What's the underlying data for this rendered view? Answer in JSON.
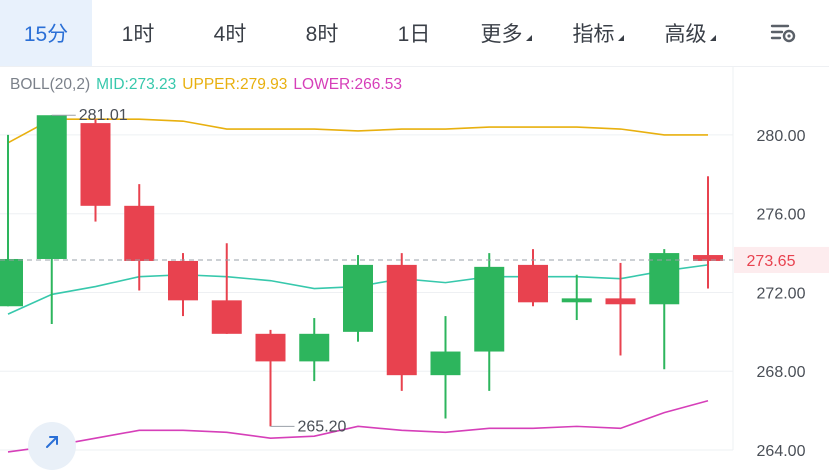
{
  "timeframe_tabs": [
    {
      "label": "15分",
      "active": true
    },
    {
      "label": "1时",
      "active": false
    },
    {
      "label": "4时",
      "active": false
    },
    {
      "label": "8时",
      "active": false
    },
    {
      "label": "1日",
      "active": false
    },
    {
      "label": "更多",
      "active": false,
      "dropdown": true
    },
    {
      "label": "指标",
      "active": false,
      "dropdown": true
    },
    {
      "label": "高级",
      "active": false,
      "dropdown": true
    }
  ],
  "settings_icon": "chart-settings-icon",
  "indicator": {
    "name": "BOLL(20,2)",
    "mid": "MID:273.23",
    "upper": "UPPER:279.93",
    "lower": "LOWER:266.53"
  },
  "colors": {
    "up": "#2db55d",
    "down": "#e8424f",
    "mid": "#37c8ac",
    "upper": "#e8b00f",
    "lower": "#d63fb9",
    "accent": "#2a6fd6",
    "price_tag": "#e8424f"
  },
  "chart_data": {
    "type": "candlestick",
    "ylim": [
      264,
      283.5
    ],
    "y_ticks": [
      "280.00",
      "276.00",
      "272.00",
      "268.00",
      "264.00"
    ],
    "current_price": "273.65",
    "high_label": "281.01",
    "low_label": "265.20",
    "candles": [
      {
        "open": 271.3,
        "close": 273.7,
        "high": 280.0,
        "low": 271.3
      },
      {
        "open": 273.7,
        "close": 281.0,
        "high": 281.0,
        "low": 270.4
      },
      {
        "open": 280.6,
        "close": 276.4,
        "high": 280.8,
        "low": 275.6
      },
      {
        "open": 276.4,
        "close": 273.6,
        "high": 277.5,
        "low": 272.1
      },
      {
        "open": 273.6,
        "close": 271.6,
        "high": 274.0,
        "low": 270.8
      },
      {
        "open": 271.6,
        "close": 269.9,
        "high": 274.5,
        "low": 269.9
      },
      {
        "open": 269.9,
        "close": 268.5,
        "high": 270.1,
        "low": 265.2
      },
      {
        "open": 268.5,
        "close": 269.9,
        "high": 270.7,
        "low": 267.5
      },
      {
        "open": 270.0,
        "close": 273.4,
        "high": 273.9,
        "low": 269.5
      },
      {
        "open": 273.4,
        "close": 267.8,
        "high": 274.0,
        "low": 267.0
      },
      {
        "open": 267.8,
        "close": 269.0,
        "high": 270.8,
        "low": 265.6
      },
      {
        "open": 269.0,
        "close": 273.3,
        "high": 274.0,
        "low": 267.0
      },
      {
        "open": 273.4,
        "close": 271.5,
        "high": 274.2,
        "low": 271.3
      },
      {
        "open": 271.5,
        "close": 271.7,
        "high": 272.9,
        "low": 270.6
      },
      {
        "open": 271.7,
        "close": 271.4,
        "high": 273.5,
        "low": 268.8
      },
      {
        "open": 271.4,
        "close": 274.0,
        "high": 274.2,
        "low": 268.1
      },
      {
        "open": 273.9,
        "close": 273.6,
        "high": 277.9,
        "low": 272.2
      }
    ],
    "mid": [
      270.9,
      271.9,
      272.3,
      272.8,
      272.9,
      272.8,
      272.6,
      272.2,
      272.3,
      272.7,
      272.5,
      272.8,
      272.8,
      272.8,
      272.7,
      273.1,
      273.4
    ],
    "upper": [
      279.6,
      280.8,
      280.8,
      280.8,
      280.7,
      280.3,
      280.3,
      280.3,
      280.2,
      280.3,
      280.3,
      280.4,
      280.4,
      280.4,
      280.3,
      280.0,
      280.0
    ],
    "lower": [
      263.9,
      264.2,
      264.6,
      265.0,
      265.0,
      264.9,
      264.6,
      264.7,
      265.2,
      265.0,
      264.9,
      265.1,
      265.1,
      265.2,
      265.1,
      265.9,
      266.5
    ]
  }
}
